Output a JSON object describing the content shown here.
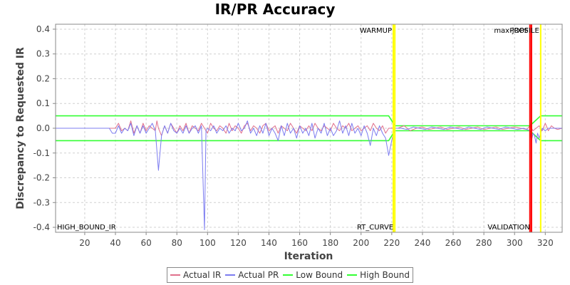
{
  "chart_data": {
    "type": "line",
    "title": "IR/PR Accuracy",
    "xlabel": "Iteration",
    "ylabel": "Discrepancy to Requested IR",
    "xlim": [
      1,
      331
    ],
    "ylim": [
      -0.42,
      0.42
    ],
    "x_ticks": [
      "20",
      "40",
      "60",
      "80",
      "100",
      "120",
      "140",
      "160",
      "180",
      "200",
      "220",
      "240",
      "260",
      "280",
      "300",
      "320"
    ],
    "y_ticks": [
      "0.4",
      "0.3",
      "0.2",
      "0.1",
      "0.0",
      "-0.1",
      "-0.2",
      "-0.3",
      "-0.4"
    ],
    "grid": true,
    "legend_position": "bottom",
    "markers": [
      {
        "label": "WARMUP",
        "x": 221,
        "color": "#ffff00",
        "label_position": "top"
      },
      {
        "label": "RT_CURVE",
        "x": 222,
        "color": "#ffff00",
        "label_position": "bottom"
      },
      {
        "label": "max-jOPS",
        "x": 310,
        "color": "#ff0000",
        "label_position": "top"
      },
      {
        "label": "VALIDATION",
        "x": 311,
        "color": "#ff0000",
        "label_position": "bottom"
      },
      {
        "label": "PROFILE",
        "x": 317,
        "color": "#ffff00",
        "label_position": "top"
      }
    ],
    "corner_label": "HIGH_BOUND_IR",
    "series": [
      {
        "name": "Actual IR",
        "color": "#e0708c",
        "points": [
          [
            1,
            0
          ],
          [
            36,
            0
          ],
          [
            40,
            0
          ],
          [
            42,
            0.02
          ],
          [
            44,
            -0.01
          ],
          [
            46,
            0.0
          ],
          [
            48,
            -0.01
          ],
          [
            50,
            0.03
          ],
          [
            52,
            -0.02
          ],
          [
            54,
            0.01
          ],
          [
            56,
            -0.02
          ],
          [
            58,
            0.02
          ],
          [
            60,
            -0.01
          ],
          [
            62,
            0.01
          ],
          [
            64,
            0.0
          ],
          [
            66,
            -0.01
          ],
          [
            67,
            0.03
          ],
          [
            68,
            0.0
          ],
          [
            70,
            -0.03
          ],
          [
            72,
            0.01
          ],
          [
            74,
            -0.02
          ],
          [
            76,
            0.02
          ],
          [
            78,
            0.0
          ],
          [
            80,
            -0.02
          ],
          [
            82,
            0.01
          ],
          [
            84,
            -0.01
          ],
          [
            86,
            0.02
          ],
          [
            88,
            -0.02
          ],
          [
            90,
            0.01
          ],
          [
            92,
            0.0
          ],
          [
            94,
            -0.01
          ],
          [
            96,
            0.02
          ],
          [
            98,
            0.0
          ],
          [
            100,
            -0.02
          ],
          [
            102,
            0.02
          ],
          [
            104,
            0.0
          ],
          [
            106,
            -0.01
          ],
          [
            108,
            0.01
          ],
          [
            110,
            0.0
          ],
          [
            112,
            -0.02
          ],
          [
            114,
            0.02
          ],
          [
            116,
            -0.01
          ],
          [
            118,
            0.01
          ],
          [
            120,
            0.0
          ],
          [
            122,
            -0.02
          ],
          [
            124,
            0.01
          ],
          [
            126,
            0.02
          ],
          [
            128,
            -0.01
          ],
          [
            130,
            0.01
          ],
          [
            132,
            0.0
          ],
          [
            134,
            -0.02
          ],
          [
            136,
            0.01
          ],
          [
            138,
            0.02
          ],
          [
            140,
            -0.01
          ],
          [
            142,
            0.0
          ],
          [
            144,
            0.01
          ],
          [
            146,
            -0.02
          ],
          [
            148,
            0.01
          ],
          [
            150,
            0.0
          ],
          [
            152,
            -0.01
          ],
          [
            154,
            0.02
          ],
          [
            156,
            0.0
          ],
          [
            158,
            -0.02
          ],
          [
            160,
            0.01
          ],
          [
            162,
            0.0
          ],
          [
            164,
            -0.01
          ],
          [
            166,
            0.01
          ],
          [
            168,
            -0.01
          ],
          [
            170,
            0.02
          ],
          [
            172,
            0.0
          ],
          [
            174,
            -0.01
          ],
          [
            176,
            0.01
          ],
          [
            178,
            0.0
          ],
          [
            180,
            -0.01
          ],
          [
            182,
            0.02
          ],
          [
            184,
            0.0
          ],
          [
            186,
            -0.01
          ],
          [
            188,
            0.01
          ],
          [
            190,
            0.0
          ],
          [
            192,
            0.02
          ],
          [
            194,
            -0.01
          ],
          [
            196,
            0.0
          ],
          [
            198,
            0.01
          ],
          [
            200,
            -0.01
          ],
          [
            202,
            0.0
          ],
          [
            204,
            0.01
          ],
          [
            206,
            -0.01
          ],
          [
            208,
            0.02
          ],
          [
            210,
            0.0
          ],
          [
            212,
            -0.01
          ],
          [
            214,
            0.01
          ],
          [
            216,
            -0.02
          ],
          [
            218,
            0.0
          ],
          [
            220,
            0.0
          ],
          [
            224,
            0.0
          ],
          [
            228,
            0.01
          ],
          [
            232,
            -0.01
          ],
          [
            236,
            0.0
          ],
          [
            240,
            0.005
          ],
          [
            244,
            -0.005
          ],
          [
            248,
            0.0
          ],
          [
            252,
            0.005
          ],
          [
            256,
            -0.005
          ],
          [
            260,
            0.0
          ],
          [
            264,
            0.005
          ],
          [
            268,
            -0.005
          ],
          [
            272,
            0.0
          ],
          [
            276,
            0.005
          ],
          [
            280,
            -0.005
          ],
          [
            284,
            0.0
          ],
          [
            288,
            0.005
          ],
          [
            292,
            -0.005
          ],
          [
            296,
            0.0
          ],
          [
            300,
            0.005
          ],
          [
            304,
            0.0
          ],
          [
            308,
            -0.005
          ],
          [
            310,
            0.01
          ],
          [
            312,
            -0.01
          ],
          [
            314,
            0.0
          ],
          [
            316,
            0.01
          ],
          [
            318,
            -0.01
          ],
          [
            320,
            0.02
          ],
          [
            322,
            -0.01
          ],
          [
            324,
            0.01
          ],
          [
            326,
            0.0
          ],
          [
            328,
            -0.005
          ],
          [
            331,
            0.0
          ]
        ]
      },
      {
        "name": "Actual PR",
        "color": "#7c7cf0",
        "points": [
          [
            1,
            0
          ],
          [
            36,
            0
          ],
          [
            38,
            -0.02
          ],
          [
            40,
            -0.02
          ],
          [
            42,
            0.01
          ],
          [
            44,
            -0.02
          ],
          [
            46,
            0.0
          ],
          [
            48,
            -0.01
          ],
          [
            50,
            0.02
          ],
          [
            52,
            -0.03
          ],
          [
            54,
            0.01
          ],
          [
            56,
            -0.02
          ],
          [
            58,
            0.01
          ],
          [
            60,
            -0.02
          ],
          [
            62,
            0.0
          ],
          [
            64,
            0.02
          ],
          [
            66,
            -0.01
          ],
          [
            68,
            -0.17
          ],
          [
            70,
            -0.03
          ],
          [
            72,
            0.01
          ],
          [
            74,
            -0.02
          ],
          [
            76,
            0.02
          ],
          [
            78,
            -0.01
          ],
          [
            80,
            -0.02
          ],
          [
            82,
            0.0
          ],
          [
            84,
            -0.02
          ],
          [
            86,
            0.01
          ],
          [
            88,
            -0.02
          ],
          [
            90,
            0.0
          ],
          [
            92,
            0.01
          ],
          [
            94,
            -0.02
          ],
          [
            96,
            0.01
          ],
          [
            98,
            -0.41
          ],
          [
            99,
            -0.01
          ],
          [
            100,
            0.0
          ],
          [
            102,
            -0.01
          ],
          [
            104,
            0.01
          ],
          [
            106,
            -0.02
          ],
          [
            108,
            0.0
          ],
          [
            110,
            -0.01
          ],
          [
            112,
            0.01
          ],
          [
            114,
            -0.02
          ],
          [
            116,
            0.0
          ],
          [
            118,
            -0.01
          ],
          [
            120,
            0.02
          ],
          [
            122,
            -0.01
          ],
          [
            124,
            0.0
          ],
          [
            126,
            0.03
          ],
          [
            128,
            -0.02
          ],
          [
            130,
            0.0
          ],
          [
            132,
            -0.03
          ],
          [
            134,
            0.01
          ],
          [
            136,
            -0.02
          ],
          [
            138,
            0.02
          ],
          [
            140,
            -0.03
          ],
          [
            142,
            0.0
          ],
          [
            144,
            -0.02
          ],
          [
            146,
            -0.05
          ],
          [
            148,
            0.01
          ],
          [
            150,
            -0.03
          ],
          [
            152,
            0.02
          ],
          [
            154,
            -0.02
          ],
          [
            156,
            0.0
          ],
          [
            158,
            -0.04
          ],
          [
            160,
            0.01
          ],
          [
            162,
            -0.02
          ],
          [
            164,
            0.0
          ],
          [
            166,
            -0.03
          ],
          [
            168,
            0.02
          ],
          [
            170,
            -0.04
          ],
          [
            172,
            0.0
          ],
          [
            174,
            -0.02
          ],
          [
            176,
            0.02
          ],
          [
            178,
            -0.03
          ],
          [
            180,
            0.0
          ],
          [
            182,
            -0.03
          ],
          [
            184,
            -0.01
          ],
          [
            186,
            0.03
          ],
          [
            188,
            -0.02
          ],
          [
            190,
            0.01
          ],
          [
            192,
            -0.03
          ],
          [
            194,
            0.02
          ],
          [
            196,
            -0.02
          ],
          [
            198,
            0.0
          ],
          [
            200,
            -0.03
          ],
          [
            202,
            0.01
          ],
          [
            204,
            -0.02
          ],
          [
            206,
            -0.07
          ],
          [
            208,
            0.0
          ],
          [
            210,
            -0.03
          ],
          [
            212,
            0.01
          ],
          [
            214,
            -0.02
          ],
          [
            216,
            -0.04
          ],
          [
            218,
            -0.11
          ],
          [
            220,
            -0.05
          ],
          [
            222,
            0.0
          ],
          [
            226,
            0.0
          ],
          [
            230,
            -0.005
          ],
          [
            234,
            0.005
          ],
          [
            238,
            0.0
          ],
          [
            242,
            -0.005
          ],
          [
            246,
            0.005
          ],
          [
            250,
            0.0
          ],
          [
            254,
            -0.005
          ],
          [
            258,
            0.005
          ],
          [
            262,
            0.0
          ],
          [
            266,
            -0.005
          ],
          [
            270,
            0.005
          ],
          [
            274,
            0.0
          ],
          [
            278,
            -0.005
          ],
          [
            282,
            0.005
          ],
          [
            286,
            0.0
          ],
          [
            290,
            -0.005
          ],
          [
            294,
            0.005
          ],
          [
            298,
            0.0
          ],
          [
            302,
            -0.005
          ],
          [
            306,
            0.0
          ],
          [
            310,
            -0.01
          ],
          [
            311,
            -0.05
          ],
          [
            312,
            -0.02
          ],
          [
            313,
            -0.03
          ],
          [
            314,
            -0.06
          ],
          [
            315,
            -0.02
          ],
          [
            316,
            -0.04
          ],
          [
            318,
            0.0
          ],
          [
            320,
            -0.01
          ],
          [
            322,
            0.0
          ],
          [
            326,
            0.0
          ],
          [
            331,
            0.0
          ]
        ]
      },
      {
        "name": "Low Bound",
        "color": "#33ff33",
        "points": [
          [
            1,
            -0.05
          ],
          [
            218,
            -0.05
          ],
          [
            222,
            -0.01
          ],
          [
            310,
            -0.01
          ],
          [
            317,
            -0.05
          ],
          [
            331,
            -0.05
          ]
        ]
      },
      {
        "name": "High Bound",
        "color": "#33ff33",
        "points": [
          [
            1,
            0.05
          ],
          [
            218,
            0.05
          ],
          [
            222,
            0.01
          ],
          [
            310,
            0.01
          ],
          [
            317,
            0.05
          ],
          [
            331,
            0.05
          ]
        ]
      }
    ]
  }
}
